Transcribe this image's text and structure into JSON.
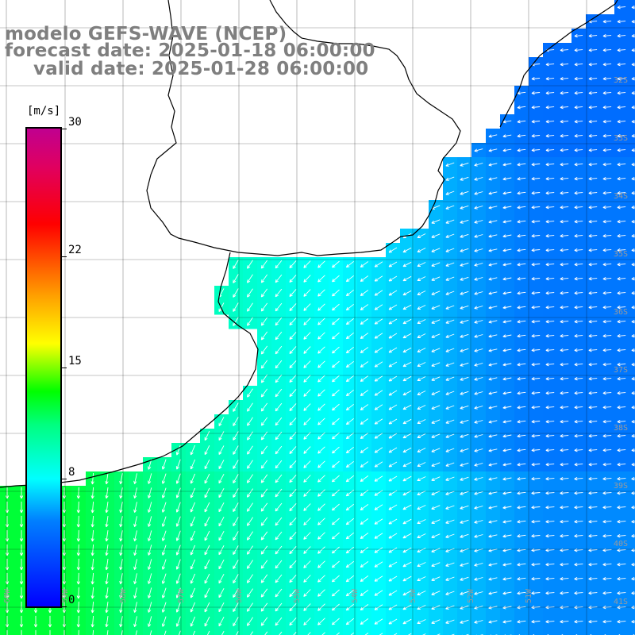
{
  "title": {
    "line1": "modelo GEFS-WAVE (NCEP)",
    "line2": "forecast date: 2025-01-18 06:00:00",
    "line3": "valid date: 2025-01-28 06:00:00"
  },
  "colorbar": {
    "unit": "[m/s]",
    "ticks": [
      "30",
      "22",
      "15",
      "8",
      "0"
    ],
    "tick_values": [
      30,
      22,
      15,
      8,
      0
    ],
    "range": [
      0,
      30
    ],
    "colors": [
      "#0000ff",
      "#0080ff",
      "#00ffff",
      "#00ff80",
      "#00ff00",
      "#80ff00",
      "#ffff00",
      "#ffa000",
      "#ff0000",
      "#c00090"
    ]
  },
  "lat_labels": [
    "32S",
    "33S",
    "34S",
    "35S",
    "36S",
    "37S",
    "38S",
    "39S",
    "40S",
    "41S"
  ],
  "lon_labels": [
    "60W",
    "59W",
    "58W",
    "57W",
    "56W",
    "55W",
    "54W",
    "53W",
    "52W",
    "51W"
  ],
  "field": {
    "variable": "wind speed and direction",
    "units": "m/s",
    "west_speed": 12,
    "east_speed": 5,
    "dominant_direction_west": "north to south",
    "dominant_direction_east": "east to west"
  },
  "colors": {
    "land": "#ffffff",
    "coastline": "#000000",
    "grid": "#000000",
    "title_text": "#7f7f7f",
    "arrow": "#ffffff"
  }
}
